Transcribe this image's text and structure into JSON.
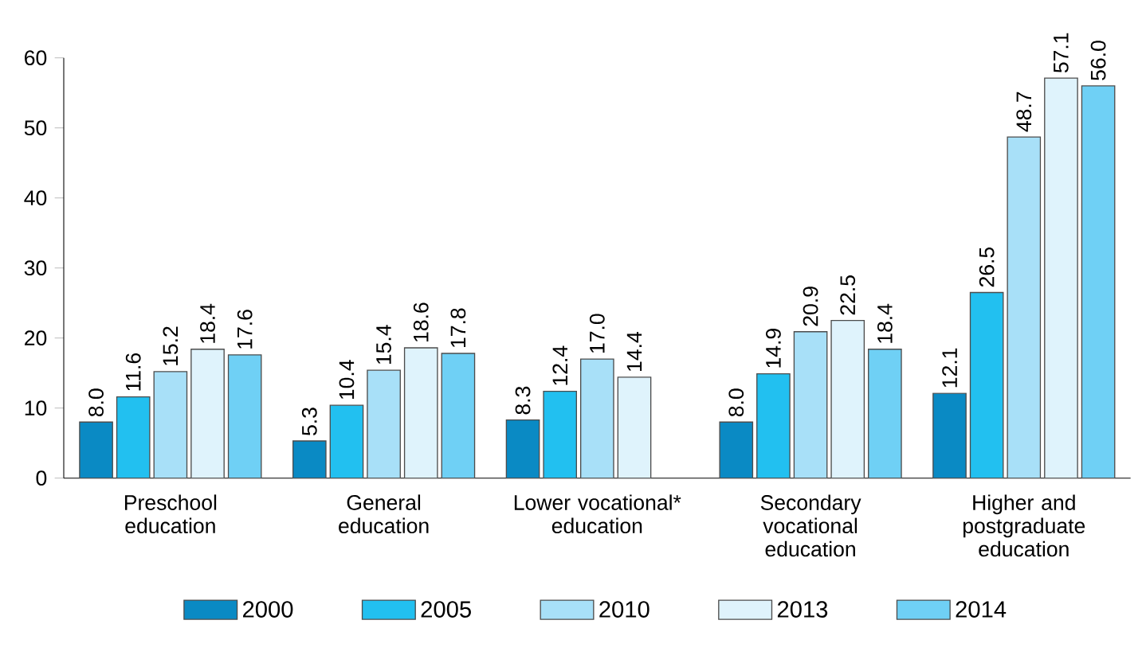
{
  "chart_data": {
    "type": "bar",
    "categories": [
      "Preschool education",
      "General education",
      "Lower vocational* education",
      "Secondary vocational education",
      "Higher and postgraduate education"
    ],
    "series": [
      {
        "name": "2000",
        "color": "#0a8ac4",
        "values": [
          8.0,
          5.3,
          8.3,
          8.0,
          12.1
        ],
        "value_labels": [
          "8.0",
          "5.3",
          "8.3",
          "8.0",
          "12.1"
        ]
      },
      {
        "name": "2005",
        "color": "#22c0f0",
        "values": [
          11.6,
          10.4,
          12.4,
          14.9,
          26.5
        ],
        "value_labels": [
          "11.6",
          "10.4",
          "12.4",
          "14.9",
          "26.5"
        ]
      },
      {
        "name": "2010",
        "color": "#a8e0f8",
        "values": [
          15.2,
          15.4,
          17.0,
          20.9,
          48.7
        ],
        "value_labels": [
          "15.2",
          "15.4",
          "17.0",
          "20.9",
          "48.7"
        ]
      },
      {
        "name": "2013",
        "color": "#dff3fc",
        "values": [
          18.4,
          18.6,
          14.4,
          22.5,
          57.1
        ],
        "value_labels": [
          "18.4",
          "18.6",
          "14.4",
          "22.5",
          "57.1"
        ]
      },
      {
        "name": "2014",
        "color": "#6fd0f5",
        "values": [
          17.6,
          17.8,
          null,
          18.4,
          56.0
        ],
        "value_labels": [
          "17.6",
          "17.8",
          null,
          "18.4",
          "56.0"
        ]
      }
    ],
    "ylim": [
      0,
      60
    ],
    "yticks": [
      0,
      10,
      20,
      30,
      40,
      50,
      60
    ],
    "grid": false,
    "legend": "bottom"
  }
}
